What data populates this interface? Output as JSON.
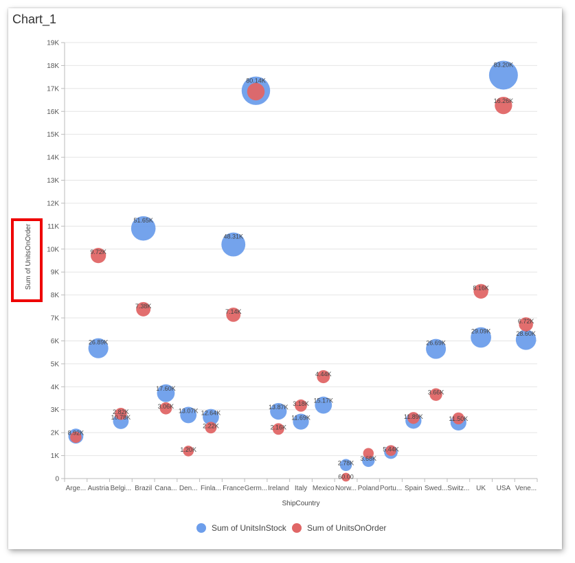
{
  "window": {
    "title": "Chart_1"
  },
  "colors": {
    "units_in_stock": "#6d9eeb",
    "units_on_order": "#e06666",
    "highlight_box": "#ee0000",
    "grid": "#e4e4e4",
    "axis": "#bbbbbb"
  },
  "chart_data": {
    "type": "scatter",
    "title": "",
    "xlabel": "ShipCountry",
    "ylabel": "Sum of UnitsOnOrder",
    "ylim": [
      0,
      19000
    ],
    "y_ticks": [
      "0",
      "1K",
      "2K",
      "3K",
      "4K",
      "5K",
      "6K",
      "7K",
      "8K",
      "9K",
      "10K",
      "11K",
      "12K",
      "13K",
      "14K",
      "15K",
      "16K",
      "17K",
      "18K",
      "19K"
    ],
    "grid": true,
    "legend_position": "bottom",
    "categories": [
      "Arge...",
      "Austria",
      "Belgi...",
      "Brazil",
      "Cana...",
      "Den...",
      "Finla...",
      "France",
      "Germ...",
      "Ireland",
      "Italy",
      "Mexico",
      "Norw...",
      "Poland",
      "Portu...",
      "Spain",
      "Swed...",
      "Switz...",
      "UK",
      "USA",
      "Vene..."
    ],
    "series": [
      {
        "name": "Sum of UnitsInStock",
        "color": "#6d9eeb",
        "points": [
          {
            "category": "Arge...",
            "y": 1850,
            "size": 8920,
            "label": "8.92K"
          },
          {
            "category": "Austria",
            "y": 5680,
            "size": 26890,
            "label": "26.89K"
          },
          {
            "category": "Belgi...",
            "y": 2500,
            "size": 10780,
            "label": "10.78K"
          },
          {
            "category": "Brazil",
            "y": 10900,
            "size": 51650,
            "label": "51.65K"
          },
          {
            "category": "Cana...",
            "y": 3720,
            "size": 17600,
            "label": "17.60K"
          },
          {
            "category": "Den...",
            "y": 2770,
            "size": 13070,
            "label": "13.07K"
          },
          {
            "category": "Finla...",
            "y": 2680,
            "size": 12640,
            "label": "12.64K"
          },
          {
            "category": "France",
            "y": 10200,
            "size": 48310,
            "label": "48.31K"
          },
          {
            "category": "Germ...",
            "y": 16900,
            "size": 80140,
            "label": "80.14K"
          },
          {
            "category": "Ireland",
            "y": 2930,
            "size": 13870,
            "label": "13.87K"
          },
          {
            "category": "Italy",
            "y": 2480,
            "size": 11690,
            "label": "11.69K"
          },
          {
            "category": "Mexico",
            "y": 3200,
            "size": 15170,
            "label": "15.17K"
          },
          {
            "category": "Norw...",
            "y": 590,
            "size": 2780,
            "label": "2.78K"
          },
          {
            "category": "Poland",
            "y": 780,
            "size": 3680,
            "label": "3.68K"
          },
          {
            "category": "Portu...",
            "y": 1150,
            "size": 5440,
            "label": "5.44K"
          },
          {
            "category": "Spain",
            "y": 2520,
            "size": 11890,
            "label": "11.89K"
          },
          {
            "category": "Swed...",
            "y": 5650,
            "size": 26690,
            "label": "26.69K"
          },
          {
            "category": "Switz...",
            "y": 2440,
            "size": 11500,
            "label": "11.50K"
          },
          {
            "category": "UK",
            "y": 6150,
            "size": 29090,
            "label": "29.09K"
          },
          {
            "category": "USA",
            "y": 17580,
            "size": 83200,
            "label": "83.20K"
          },
          {
            "category": "Vene...",
            "y": 6050,
            "size": 28600,
            "label": "28.60K"
          }
        ]
      },
      {
        "name": "Sum of UnitsOnOrder",
        "color": "#e06666",
        "points": [
          {
            "category": "Arge...",
            "y": 1800,
            "size": 1800,
            "label": ""
          },
          {
            "category": "Austria",
            "y": 9720,
            "size": 9720,
            "label": "9.72K"
          },
          {
            "category": "Belgi...",
            "y": 2820,
            "size": 2820,
            "label": "2.82K"
          },
          {
            "category": "Brazil",
            "y": 7380,
            "size": 7380,
            "label": "7.38K"
          },
          {
            "category": "Cana...",
            "y": 3060,
            "size": 3060,
            "label": "3.06K"
          },
          {
            "category": "Den...",
            "y": 1200,
            "size": 1200,
            "label": "1.20K"
          },
          {
            "category": "Finla...",
            "y": 2220,
            "size": 2220,
            "label": "2.22K"
          },
          {
            "category": "France",
            "y": 7140,
            "size": 7140,
            "label": "7.14K"
          },
          {
            "category": "Germ...",
            "y": 16860,
            "size": 16860,
            "label": ""
          },
          {
            "category": "Ireland",
            "y": 2160,
            "size": 2160,
            "label": "2.16K"
          },
          {
            "category": "Italy",
            "y": 3180,
            "size": 3180,
            "label": "3.18K"
          },
          {
            "category": "Mexico",
            "y": 4440,
            "size": 4440,
            "label": "4.44K"
          },
          {
            "category": "Norw...",
            "y": 60,
            "size": 60,
            "label": "60.00"
          },
          {
            "category": "Poland",
            "y": 1100,
            "size": 1100,
            "label": ""
          },
          {
            "category": "Portu...",
            "y": 1220,
            "size": 1220,
            "label": ""
          },
          {
            "category": "Spain",
            "y": 2640,
            "size": 2640,
            "label": ""
          },
          {
            "category": "Swed...",
            "y": 3660,
            "size": 3660,
            "label": "3.66K"
          },
          {
            "category": "Switz...",
            "y": 2620,
            "size": 2620,
            "label": ""
          },
          {
            "category": "UK",
            "y": 8160,
            "size": 8160,
            "label": "8.16K"
          },
          {
            "category": "USA",
            "y": 16260,
            "size": 16260,
            "label": "16.26K"
          },
          {
            "category": "Vene...",
            "y": 6720,
            "size": 6720,
            "label": "6.72K"
          }
        ]
      }
    ]
  }
}
